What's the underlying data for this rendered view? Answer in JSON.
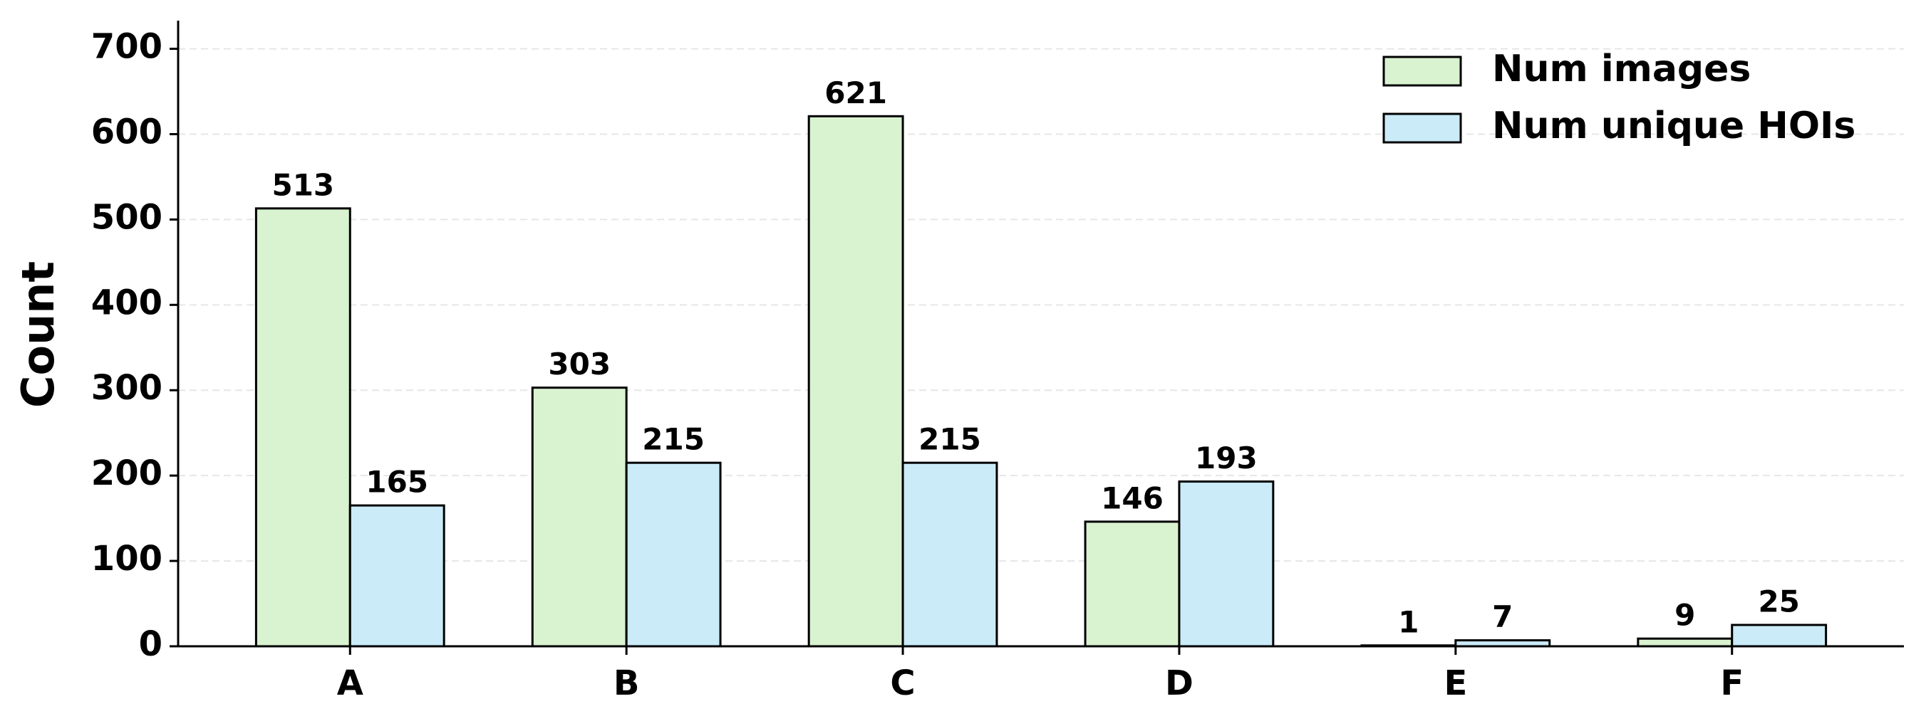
{
  "chart_data": {
    "type": "bar",
    "ylabel": "Count",
    "categories": [
      "A",
      "B",
      "C",
      "D",
      "E",
      "F"
    ],
    "series": [
      {
        "name": "Num images",
        "color": "#d9f2d0",
        "values": [
          513,
          303,
          621,
          146,
          1,
          9
        ]
      },
      {
        "name": "Num unique HOIs",
        "color": "#caebf7",
        "values": [
          165,
          215,
          215,
          193,
          7,
          25
        ]
      }
    ],
    "ylim": [
      0,
      733
    ],
    "yticks": [
      0,
      100,
      200,
      300,
      400,
      500,
      600,
      700
    ],
    "grid": true,
    "legend": "upper right"
  }
}
